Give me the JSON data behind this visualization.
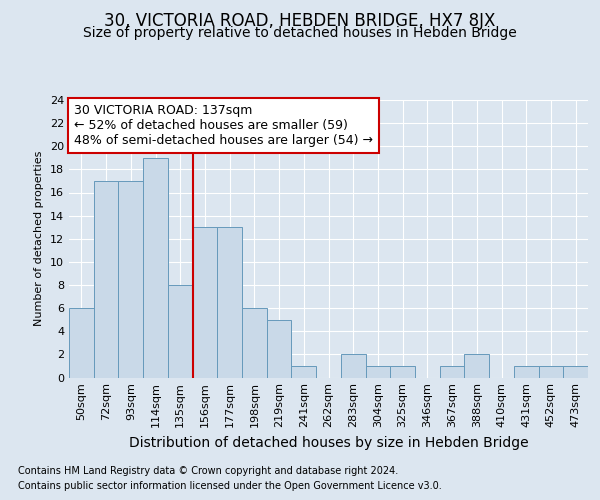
{
  "title": "30, VICTORIA ROAD, HEBDEN BRIDGE, HX7 8JX",
  "subtitle": "Size of property relative to detached houses in Hebden Bridge",
  "xlabel": "Distribution of detached houses by size in Hebden Bridge",
  "ylabel": "Number of detached properties",
  "categories": [
    "50sqm",
    "72sqm",
    "93sqm",
    "114sqm",
    "135sqm",
    "156sqm",
    "177sqm",
    "198sqm",
    "219sqm",
    "241sqm",
    "262sqm",
    "283sqm",
    "304sqm",
    "325sqm",
    "346sqm",
    "367sqm",
    "388sqm",
    "410sqm",
    "431sqm",
    "452sqm",
    "473sqm"
  ],
  "values": [
    6,
    17,
    17,
    19,
    8,
    13,
    13,
    6,
    5,
    1,
    0,
    2,
    1,
    1,
    0,
    1,
    2,
    0,
    1,
    1,
    1
  ],
  "bar_color": "#c9d9e8",
  "bar_edgecolor": "#6699bb",
  "bar_linewidth": 0.7,
  "vline_color": "#cc0000",
  "vline_index": 4,
  "ylim": [
    0,
    24
  ],
  "yticks": [
    0,
    2,
    4,
    6,
    8,
    10,
    12,
    14,
    16,
    18,
    20,
    22,
    24
  ],
  "annotation_line1": "30 VICTORIA ROAD: 137sqm",
  "annotation_line2": "← 52% of detached houses are smaller (59)",
  "annotation_line3": "48% of semi-detached houses are larger (54) →",
  "footnote1": "Contains HM Land Registry data © Crown copyright and database right 2024.",
  "footnote2": "Contains public sector information licensed under the Open Government Licence v3.0.",
  "background_color": "#dce6f0",
  "plot_background": "#dce6f0",
  "title_fontsize": 12,
  "subtitle_fontsize": 10,
  "xlabel_fontsize": 10,
  "ylabel_fontsize": 8,
  "tick_fontsize": 8,
  "annotation_fontsize": 9,
  "footnote_fontsize": 7,
  "grid_color": "#ffffff"
}
